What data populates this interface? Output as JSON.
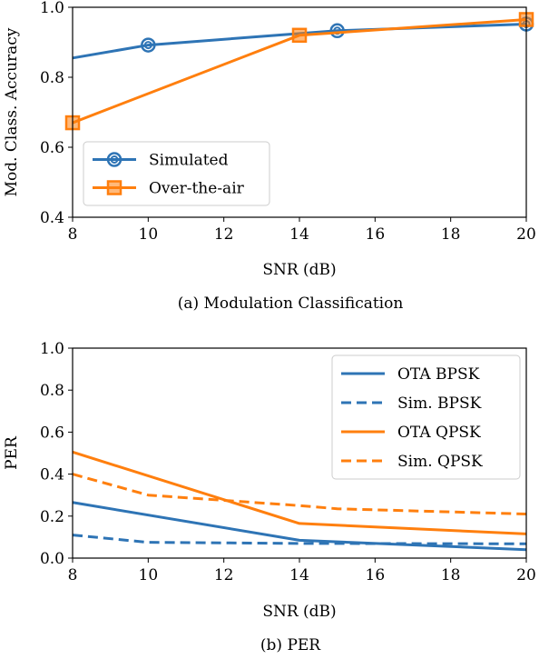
{
  "figure": {
    "charts": [
      {
        "id": "acc",
        "caption": "(a) Modulation Classification",
        "colors": {
          "Simulated": "#2e74b5",
          "Over-the-air": "#ff7f0e"
        }
      },
      {
        "id": "per",
        "caption": "(b) PER",
        "colors": {
          "OTA BPSK": "#2e74b5",
          "Sim. BPSK": "#2e74b5",
          "OTA QPSK": "#ff7f0e",
          "Sim. QPSK": "#ff7f0e"
        }
      }
    ]
  },
  "chart_data": [
    {
      "type": "line",
      "caption": "(a) Modulation Classification",
      "xlabel": "SNR (dB)",
      "ylabel": "Mod. Class. Accuracy",
      "xlim": [
        8,
        20
      ],
      "ylim": [
        0.4,
        1.0
      ],
      "xticks": [
        8,
        10,
        12,
        14,
        16,
        18,
        20
      ],
      "yticks": [
        0.4,
        0.6,
        0.8,
        1.0
      ],
      "ytick_labels": [
        "0.4",
        "0.6",
        "0.8",
        "1.0"
      ],
      "grid": false,
      "legend_position": "lower-left",
      "series": [
        {
          "name": "Simulated",
          "color": "#2e74b5",
          "marker": "circle",
          "dash": "solid",
          "x": [
            8,
            10,
            14,
            15,
            20
          ],
          "y": [
            0.855,
            0.892,
            0.925,
            0.933,
            0.952
          ],
          "marker_x": [
            10,
            15,
            20
          ]
        },
        {
          "name": "Over-the-air",
          "color": "#ff7f0e",
          "marker": "square",
          "dash": "solid",
          "x": [
            8,
            14,
            20
          ],
          "y": [
            0.67,
            0.92,
            0.965
          ],
          "marker_x": [
            8,
            14,
            20
          ]
        }
      ]
    },
    {
      "type": "line",
      "caption": "(b) PER",
      "xlabel": "SNR (dB)",
      "ylabel": "PER",
      "xlim": [
        8,
        20
      ],
      "ylim": [
        0.0,
        1.0
      ],
      "xticks": [
        8,
        10,
        12,
        14,
        16,
        18,
        20
      ],
      "yticks": [
        0.0,
        0.2,
        0.4,
        0.6,
        0.8,
        1.0
      ],
      "ytick_labels": [
        "0.0",
        "0.2",
        "0.4",
        "0.6",
        "0.8",
        "1.0"
      ],
      "grid": false,
      "legend_position": "top-right",
      "series": [
        {
          "name": "OTA BPSK",
          "color": "#2e74b5",
          "dash": "solid",
          "x": [
            8,
            14,
            20
          ],
          "y": [
            0.265,
            0.085,
            0.04
          ]
        },
        {
          "name": "Sim. BPSK",
          "color": "#2e74b5",
          "dash": "dashed",
          "x": [
            8,
            10,
            14,
            20
          ],
          "y": [
            0.11,
            0.075,
            0.07,
            0.068
          ]
        },
        {
          "name": "OTA QPSK",
          "color": "#ff7f0e",
          "dash": "solid",
          "x": [
            8,
            14,
            20
          ],
          "y": [
            0.505,
            0.165,
            0.115
          ]
        },
        {
          "name": "Sim. QPSK",
          "color": "#ff7f0e",
          "dash": "dashed",
          "x": [
            8,
            10,
            14,
            15,
            20
          ],
          "y": [
            0.4,
            0.3,
            0.25,
            0.235,
            0.21
          ]
        }
      ]
    }
  ]
}
